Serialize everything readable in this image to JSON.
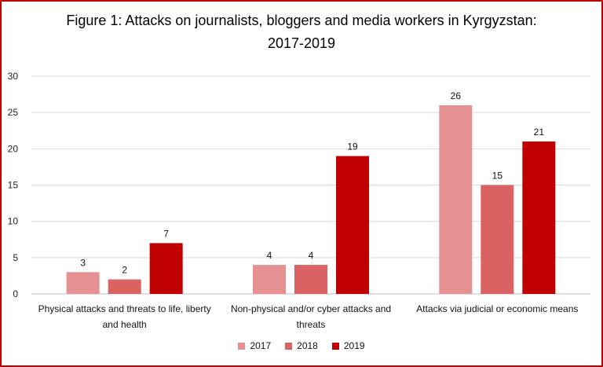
{
  "chart_data": {
    "type": "bar",
    "title_line1": "Figure 1: Attacks on journalists, bloggers and media workers in Kyrgyzstan:",
    "title_line2": "2017-2019",
    "categories": [
      [
        "Physical attacks and threats to life, liberty",
        "and health"
      ],
      [
        "Non-physical and/or cyber attacks and",
        "threats"
      ],
      [
        "Attacks via judicial or economic means"
      ]
    ],
    "series": [
      {
        "name": "2017",
        "color": "#e69191",
        "values": [
          3,
          4,
          26
        ]
      },
      {
        "name": "2018",
        "color": "#db6262",
        "values": [
          2,
          4,
          15
        ]
      },
      {
        "name": "2019",
        "color": "#c00000",
        "values": [
          7,
          19,
          21
        ]
      }
    ],
    "yticks": [
      "0",
      "5",
      "10",
      "15",
      "20",
      "25",
      "30"
    ],
    "ylim": [
      0,
      30
    ],
    "grid": true,
    "legend_position": "bottom"
  }
}
